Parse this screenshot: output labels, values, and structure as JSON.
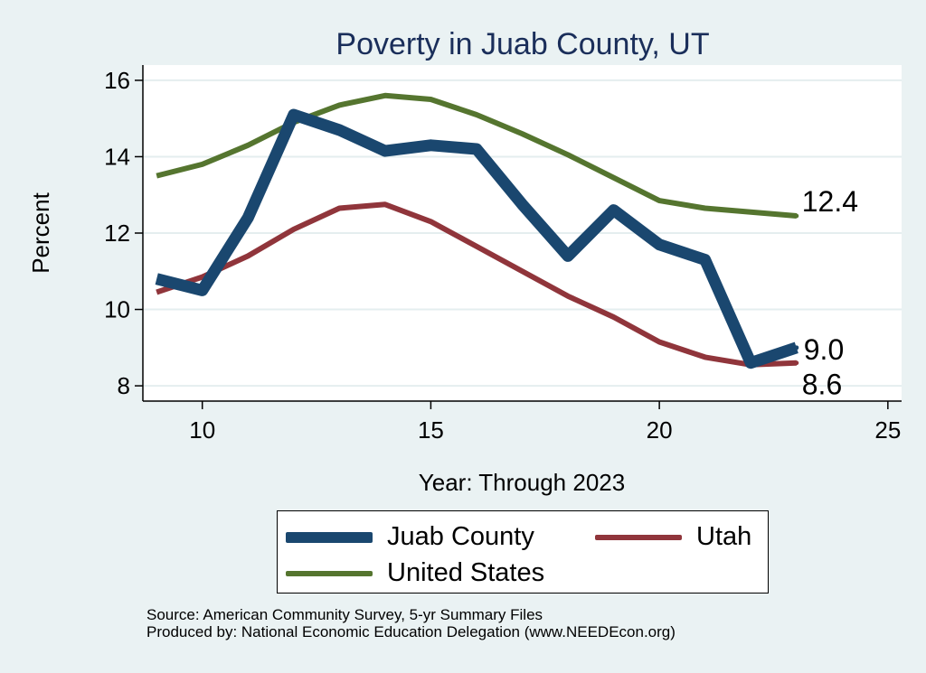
{
  "chart_data": {
    "type": "line",
    "title": "Poverty in Juab County, UT",
    "xlabel": "Year: Through 2023",
    "ylabel": "Percent",
    "xlim": [
      8.7,
      25.3
    ],
    "ylim": [
      7.6,
      16.4
    ],
    "xticks": [
      10,
      15,
      20,
      25
    ],
    "yticks": [
      8,
      10,
      12,
      14,
      16
    ],
    "grid": true,
    "series": [
      {
        "name": "Juab County",
        "color": "#1a476f",
        "x": [
          9,
          10,
          11,
          12,
          13,
          14,
          15,
          16,
          17,
          18,
          19,
          20,
          21,
          22,
          23
        ],
        "values": [
          10.8,
          10.5,
          12.4,
          15.1,
          14.7,
          14.15,
          14.3,
          14.2,
          12.75,
          11.4,
          12.6,
          11.7,
          11.3,
          8.6,
          9.0
        ],
        "end_label": "9.0"
      },
      {
        "name": "Utah",
        "color": "#90353b",
        "x": [
          9,
          10,
          11,
          12,
          13,
          14,
          15,
          16,
          17,
          18,
          19,
          20,
          21,
          22,
          23
        ],
        "values": [
          10.45,
          10.85,
          11.4,
          12.1,
          12.65,
          12.75,
          12.3,
          11.65,
          11.0,
          10.35,
          9.8,
          9.15,
          8.75,
          8.55,
          8.6
        ],
        "end_label": "8.6"
      },
      {
        "name": "United States",
        "color": "#55752f",
        "x": [
          9,
          10,
          11,
          12,
          13,
          14,
          15,
          16,
          17,
          18,
          19,
          20,
          21,
          22,
          23
        ],
        "values": [
          13.5,
          13.8,
          14.3,
          14.9,
          15.35,
          15.6,
          15.5,
          15.1,
          14.6,
          14.05,
          13.45,
          12.85,
          12.65,
          12.55,
          12.45
        ],
        "end_label": "12.4"
      }
    ],
    "legend": {
      "position": "bottom",
      "order": [
        "Juab County",
        "Utah",
        "United States"
      ]
    }
  },
  "source_lines": [
    "Source: American Community Survey, 5-yr Summary Files",
    "Produced by: National Economic Education Delegation (www.NEEDEcon.org)"
  ]
}
